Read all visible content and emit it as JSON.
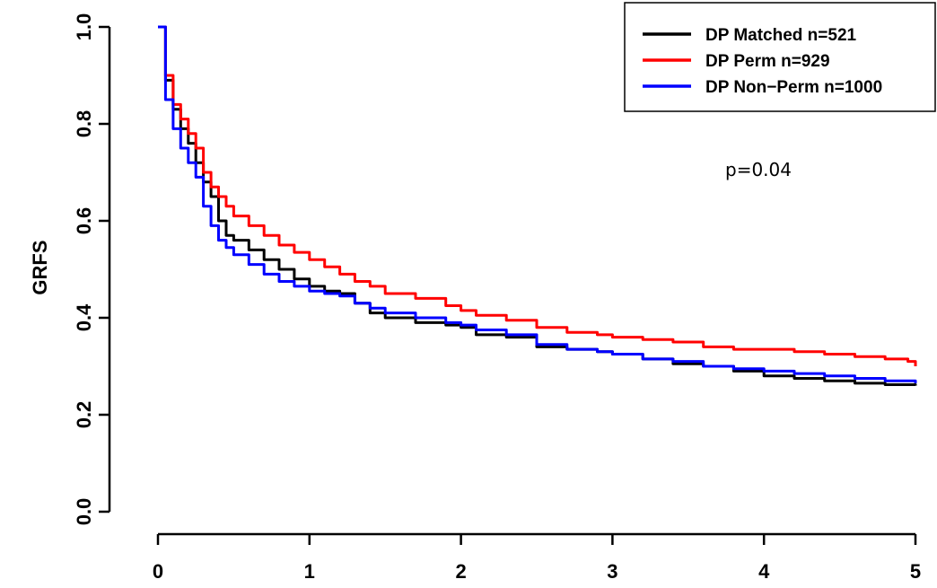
{
  "chart_data": {
    "type": "line",
    "title": "",
    "xlabel": "",
    "ylabel": "GRFS",
    "xlim": [
      0,
      5
    ],
    "ylim": [
      0,
      1
    ],
    "x_ticks": [
      "0",
      "1",
      "2",
      "3",
      "4",
      "5"
    ],
    "y_ticks": [
      "0.0",
      "0.2",
      "0.4",
      "0.6",
      "0.8",
      "1.0"
    ],
    "grid": false,
    "legend_position": "top-right",
    "annotation": "p=0.04",
    "series": [
      {
        "name": "DP Matched n=521",
        "color": "#000000",
        "x": [
          0,
          0.05,
          0.1,
          0.15,
          0.2,
          0.25,
          0.3,
          0.35,
          0.4,
          0.45,
          0.5,
          0.6,
          0.7,
          0.8,
          0.9,
          1.0,
          1.1,
          1.2,
          1.3,
          1.4,
          1.5,
          1.7,
          1.9,
          2.0,
          2.1,
          2.3,
          2.5,
          2.7,
          2.9,
          3.0,
          3.2,
          3.4,
          3.6,
          3.8,
          4.0,
          4.2,
          4.4,
          4.6,
          4.8,
          5.0
        ],
        "y": [
          1.0,
          0.89,
          0.83,
          0.79,
          0.76,
          0.72,
          0.68,
          0.65,
          0.6,
          0.57,
          0.56,
          0.54,
          0.52,
          0.5,
          0.48,
          0.465,
          0.455,
          0.45,
          0.43,
          0.41,
          0.4,
          0.39,
          0.385,
          0.38,
          0.365,
          0.36,
          0.34,
          0.335,
          0.33,
          0.325,
          0.315,
          0.305,
          0.3,
          0.29,
          0.28,
          0.275,
          0.27,
          0.265,
          0.262,
          0.26
        ]
      },
      {
        "name": "DP Perm n=929",
        "color": "#ff0000",
        "x": [
          0,
          0.05,
          0.1,
          0.15,
          0.2,
          0.25,
          0.3,
          0.35,
          0.4,
          0.45,
          0.5,
          0.6,
          0.7,
          0.8,
          0.9,
          1.0,
          1.1,
          1.2,
          1.3,
          1.4,
          1.5,
          1.7,
          1.9,
          2.0,
          2.1,
          2.3,
          2.5,
          2.7,
          2.9,
          3.0,
          3.2,
          3.4,
          3.6,
          3.8,
          4.0,
          4.2,
          4.4,
          4.6,
          4.8,
          4.95,
          5.0
        ],
        "y": [
          1.0,
          0.9,
          0.84,
          0.81,
          0.78,
          0.75,
          0.7,
          0.67,
          0.65,
          0.63,
          0.61,
          0.59,
          0.57,
          0.55,
          0.535,
          0.52,
          0.505,
          0.49,
          0.475,
          0.465,
          0.45,
          0.44,
          0.425,
          0.415,
          0.405,
          0.395,
          0.38,
          0.37,
          0.365,
          0.36,
          0.355,
          0.35,
          0.34,
          0.335,
          0.335,
          0.33,
          0.325,
          0.32,
          0.315,
          0.31,
          0.3
        ]
      },
      {
        "name": "DP Non−Perm n=1000",
        "color": "#0000ff",
        "x": [
          0,
          0.05,
          0.1,
          0.15,
          0.2,
          0.25,
          0.3,
          0.35,
          0.4,
          0.45,
          0.5,
          0.6,
          0.7,
          0.8,
          0.9,
          1.0,
          1.1,
          1.2,
          1.3,
          1.4,
          1.5,
          1.7,
          1.9,
          2.0,
          2.1,
          2.3,
          2.5,
          2.7,
          2.9,
          3.0,
          3.2,
          3.4,
          3.6,
          3.8,
          4.0,
          4.2,
          4.4,
          4.6,
          4.8,
          5.0
        ],
        "y": [
          1.0,
          0.85,
          0.79,
          0.75,
          0.72,
          0.69,
          0.63,
          0.59,
          0.56,
          0.545,
          0.53,
          0.51,
          0.49,
          0.475,
          0.465,
          0.455,
          0.45,
          0.445,
          0.43,
          0.42,
          0.41,
          0.4,
          0.39,
          0.385,
          0.375,
          0.365,
          0.345,
          0.335,
          0.33,
          0.325,
          0.315,
          0.31,
          0.3,
          0.295,
          0.29,
          0.285,
          0.28,
          0.275,
          0.27,
          0.265
        ]
      }
    ]
  }
}
